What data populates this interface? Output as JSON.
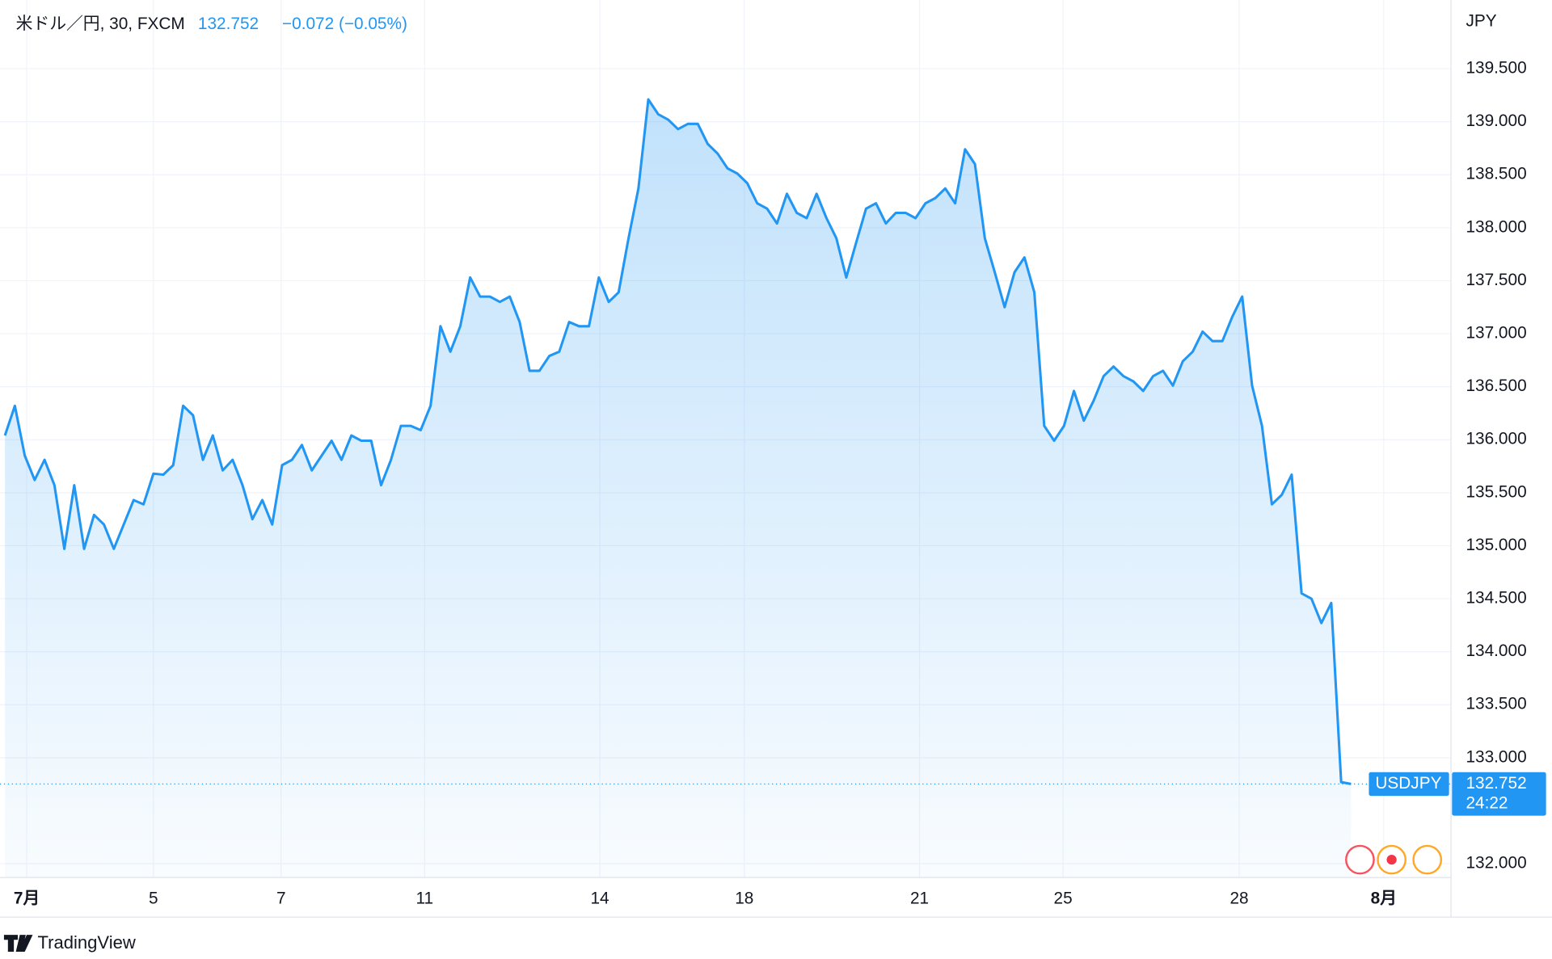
{
  "chart_data": {
    "type": "area",
    "header": {
      "symbol": "米ドル／円, 30, FXCM",
      "price": "132.752",
      "change": "−0.072 (−0.05%)"
    },
    "currency": "JPY",
    "price_tag": {
      "symbol": "USDJPY",
      "price": "132.752",
      "countdown": "24:22"
    },
    "brand": "TradingView",
    "color": "#2196f3",
    "values": [
      136.04,
      136.32,
      135.85,
      135.62,
      135.81,
      135.57,
      134.97,
      135.57,
      134.97,
      135.29,
      135.2,
      134.97,
      135.2,
      135.43,
      135.39,
      135.68,
      135.67,
      135.76,
      136.32,
      136.23,
      135.81,
      136.04,
      135.71,
      135.81,
      135.57,
      135.25,
      135.43,
      135.2,
      135.76,
      135.81,
      135.95,
      135.71,
      135.85,
      135.99,
      135.81,
      136.04,
      135.99,
      135.99,
      135.57,
      135.81,
      136.13,
      136.13,
      136.09,
      136.32,
      137.07,
      136.83,
      137.07,
      137.53,
      137.35,
      137.35,
      137.3,
      137.35,
      137.11,
      136.65,
      136.65,
      136.79,
      136.83,
      137.11,
      137.07,
      137.07,
      137.53,
      137.3,
      137.39,
      137.9,
      138.37,
      139.21,
      139.07,
      139.02,
      138.93,
      138.98,
      138.98,
      138.79,
      138.7,
      138.56,
      138.51,
      138.42,
      138.23,
      138.18,
      138.04,
      138.32,
      138.14,
      138.09,
      138.32,
      138.09,
      137.9,
      137.53,
      137.86,
      138.18,
      138.23,
      138.04,
      138.14,
      138.14,
      138.09,
      138.23,
      138.28,
      138.37,
      138.23,
      138.74,
      138.6,
      137.9,
      137.58,
      137.25,
      137.58,
      137.72,
      137.39,
      136.13,
      135.99,
      136.13,
      136.46,
      136.18,
      136.37,
      136.6,
      136.69,
      136.6,
      136.55,
      136.46,
      136.6,
      136.65,
      136.51,
      136.74,
      136.83,
      137.02,
      136.93,
      136.93,
      137.16,
      137.35,
      136.51,
      136.13,
      135.39,
      135.48,
      135.67,
      134.55,
      134.5,
      134.27,
      134.46,
      132.77,
      132.752
    ],
    "xlim": [
      0,
      146.1
    ],
    "xticks": [
      {
        "value": 2.2,
        "label": "7月"
      },
      {
        "value": 15,
        "label": "5"
      },
      {
        "value": 27.9,
        "label": "7"
      },
      {
        "value": 42.4,
        "label": "11"
      },
      {
        "value": 60.1,
        "label": "14"
      },
      {
        "value": 74.7,
        "label": "18"
      },
      {
        "value": 92.4,
        "label": "21"
      },
      {
        "value": 106.9,
        "label": "25"
      },
      {
        "value": 124.7,
        "label": "28"
      },
      {
        "value": 139.3,
        "label": "8月"
      }
    ],
    "ylim": [
      131.87,
      140.12
    ],
    "yticks": [
      {
        "value": 132,
        "label": "132.000"
      },
      {
        "value": 133,
        "label": "133.000"
      },
      {
        "value": 133.5,
        "label": "133.500"
      },
      {
        "value": 134,
        "label": "134.000"
      },
      {
        "value": 134.5,
        "label": "134.500"
      },
      {
        "value": 135,
        "label": "135.000"
      },
      {
        "value": 135.5,
        "label": "135.500"
      },
      {
        "value": 136,
        "label": "136.000"
      },
      {
        "value": 136.5,
        "label": "136.500"
      },
      {
        "value": 137,
        "label": "137.000"
      },
      {
        "value": 137.5,
        "label": "137.500"
      },
      {
        "value": 138,
        "label": "138.000"
      },
      {
        "value": 138.5,
        "label": "138.500"
      },
      {
        "value": 139,
        "label": "139.000"
      },
      {
        "value": 139.5,
        "label": "139.500"
      }
    ],
    "grid": true
  }
}
